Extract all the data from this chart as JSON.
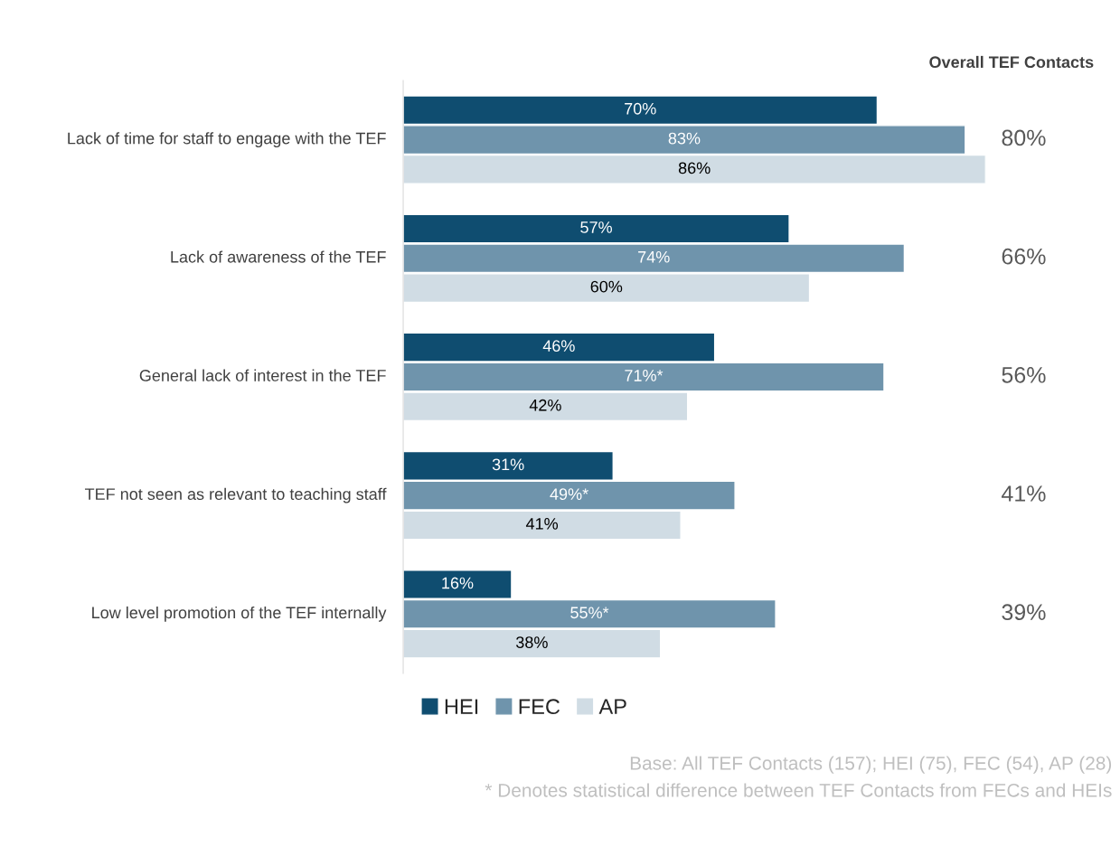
{
  "chart_data": {
    "type": "bar",
    "orientation": "horizontal",
    "categories": [
      "Lack of time for staff to engage with the TEF",
      "Lack of awareness of the TEF",
      "General lack of interest in the TEF",
      "TEF not seen as relevant to teaching staff",
      "Low level promotion of the TEF internally"
    ],
    "series": [
      {
        "name": "HEI",
        "color": "#0f4d70",
        "values": [
          70,
          57,
          46,
          31,
          16
        ],
        "value_labels": [
          "70%",
          "57%",
          "46%",
          "31%",
          "16%"
        ]
      },
      {
        "name": "FEC",
        "color": "#6f94ac",
        "values": [
          83,
          74,
          71,
          49,
          55
        ],
        "value_labels": [
          "83%",
          "74%",
          "71%*",
          "49%*",
          "55%*"
        ]
      },
      {
        "name": "AP",
        "color": "#d0dce4",
        "values": [
          86,
          60,
          42,
          41,
          38
        ],
        "value_labels": [
          "86%",
          "60%",
          "42%",
          "41%",
          "38%"
        ]
      }
    ],
    "legend": "bottom",
    "grid": false,
    "tick_labels": "y",
    "annotations": [
      "Overall TEF Contacts",
      "80%",
      "66%",
      "56%",
      "41%",
      "39%",
      "Base: All TEF Contacts (157); HEI (75), FEC (54), AP (28)",
      "* Denotes statistical difference between TEF Contacts from FECs and HEIs"
    ]
  }
}
